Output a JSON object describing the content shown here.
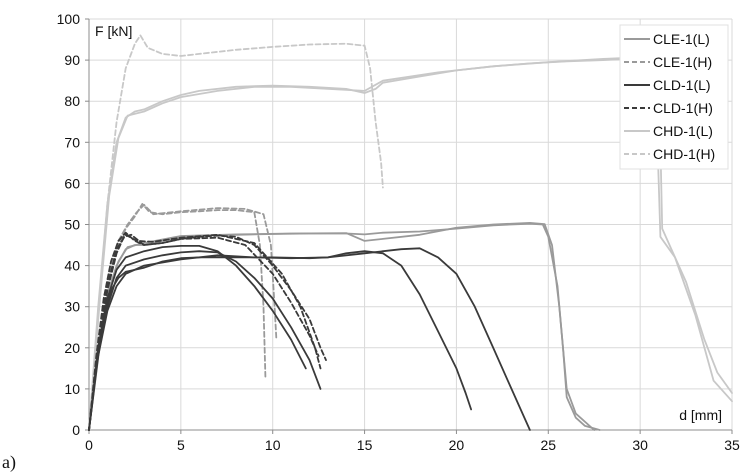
{
  "chart_data": {
    "type": "line",
    "panel_label": "a)",
    "xlabel": "d [mm]",
    "ylabel": "F [kN]",
    "xlim": [
      0,
      35
    ],
    "ylim": [
      0,
      100
    ],
    "xticks": [
      0,
      5,
      10,
      15,
      20,
      25,
      30,
      35
    ],
    "yticks": [
      0,
      10,
      20,
      30,
      40,
      50,
      60,
      70,
      80,
      90,
      100
    ],
    "grid": true,
    "legend_position": "top-right",
    "series": [
      {
        "name": "CLE-1(L)",
        "color": "#9a9a9a",
        "dash": "solid",
        "curves": [
          [
            [
              0,
              0
            ],
            [
              0.5,
              20
            ],
            [
              1,
              33
            ],
            [
              1.5,
              40
            ],
            [
              2,
              44
            ],
            [
              2.5,
              45
            ],
            [
              3,
              45
            ],
            [
              4,
              46
            ],
            [
              5,
              47
            ],
            [
              6,
              47.3
            ],
            [
              8,
              47.5
            ],
            [
              10,
              47.7
            ],
            [
              12,
              47.8
            ],
            [
              14,
              47.8
            ],
            [
              15,
              47.6
            ],
            [
              16,
              48
            ],
            [
              18,
              48.3
            ],
            [
              20,
              49
            ],
            [
              22,
              49.8
            ],
            [
              24,
              50.2
            ],
            [
              24.7,
              50
            ],
            [
              25,
              47
            ],
            [
              25.5,
              35
            ],
            [
              25.8,
              20
            ],
            [
              26,
              8
            ],
            [
              26.5,
              3
            ],
            [
              27,
              1
            ],
            [
              27.8,
              0
            ]
          ],
          [
            [
              0,
              0
            ],
            [
              0.6,
              21
            ],
            [
              1.1,
              34
            ],
            [
              1.6,
              41
            ],
            [
              2.1,
              44.5
            ],
            [
              3,
              45.5
            ],
            [
              5,
              47.2
            ],
            [
              8,
              47.6
            ],
            [
              11,
              47.8
            ],
            [
              14,
              47.9
            ],
            [
              15,
              46
            ],
            [
              16,
              46.5
            ],
            [
              18,
              47.5
            ],
            [
              20,
              49.2
            ],
            [
              22,
              50
            ],
            [
              24,
              50.4
            ],
            [
              24.8,
              50.1
            ],
            [
              25.2,
              45
            ],
            [
              25.6,
              30
            ],
            [
              26,
              10
            ],
            [
              26.5,
              4
            ],
            [
              27.5,
              0
            ]
          ]
        ]
      },
      {
        "name": "CLE-1(H)",
        "color": "#9a9a9a",
        "dash": "dashed",
        "curves": [
          [
            [
              0,
              0
            ],
            [
              0.5,
              22
            ],
            [
              1,
              36
            ],
            [
              1.5,
              44
            ],
            [
              2,
              49
            ],
            [
              2.5,
              52
            ],
            [
              2.9,
              55
            ],
            [
              3.3,
              53
            ],
            [
              4,
              52.5
            ],
            [
              5,
              53
            ],
            [
              6,
              53.2
            ],
            [
              7,
              53.5
            ],
            [
              8,
              53.5
            ],
            [
              9,
              53
            ],
            [
              9.3,
              45
            ],
            [
              9.5,
              30
            ],
            [
              9.6,
              13
            ]
          ],
          [
            [
              0,
              0
            ],
            [
              0.6,
              24
            ],
            [
              1.1,
              38
            ],
            [
              1.6,
              46
            ],
            [
              2.1,
              50
            ],
            [
              2.6,
              53
            ],
            [
              3,
              54.8
            ],
            [
              3.5,
              52.5
            ],
            [
              5,
              53.2
            ],
            [
              7,
              54
            ],
            [
              8.5,
              53.8
            ],
            [
              9.5,
              52.5
            ],
            [
              9.9,
              45
            ],
            [
              10.1,
              30
            ],
            [
              10.2,
              22
            ]
          ]
        ]
      },
      {
        "name": "CLD-1(L)",
        "color": "#3a3a3a",
        "dash": "solid",
        "curves": [
          [
            [
              0,
              0
            ],
            [
              0.4,
              15
            ],
            [
              0.8,
              27
            ],
            [
              1.2,
              34
            ],
            [
              1.6,
              37
            ],
            [
              2,
              38.5
            ],
            [
              3,
              39.5
            ],
            [
              4,
              41
            ],
            [
              5,
              41.8
            ],
            [
              6,
              42
            ],
            [
              8,
              42
            ],
            [
              10,
              42
            ],
            [
              12,
              41.8
            ],
            [
              13,
              42
            ],
            [
              14,
              43
            ],
            [
              15,
              43.5
            ],
            [
              16,
              43
            ],
            [
              17,
              40
            ],
            [
              18,
              33
            ],
            [
              19,
              24
            ],
            [
              20,
              15
            ],
            [
              20.5,
              9
            ],
            [
              20.8,
              5
            ]
          ],
          [
            [
              0,
              0
            ],
            [
              0.5,
              18
            ],
            [
              1,
              29
            ],
            [
              1.5,
              35
            ],
            [
              2,
              38
            ],
            [
              3,
              40
            ],
            [
              5,
              41.5
            ],
            [
              7,
              42.5
            ],
            [
              9,
              42
            ],
            [
              11,
              41.8
            ],
            [
              13,
              42
            ],
            [
              15,
              43
            ],
            [
              17,
              44
            ],
            [
              18,
              44.2
            ],
            [
              19,
              42
            ],
            [
              20,
              38
            ],
            [
              21,
              30
            ],
            [
              22,
              20
            ],
            [
              23,
              10
            ],
            [
              23.7,
              3
            ],
            [
              24,
              0
            ]
          ],
          [
            [
              0,
              0
            ],
            [
              0.5,
              19
            ],
            [
              1,
              30
            ],
            [
              1.5,
              37
            ],
            [
              2,
              40
            ],
            [
              3,
              41.5
            ],
            [
              4,
              42.5
            ],
            [
              5,
              43.2
            ],
            [
              6,
              43.5
            ],
            [
              7,
              43.2
            ],
            [
              8,
              41
            ],
            [
              9,
              37
            ],
            [
              10,
              32
            ],
            [
              11,
              25
            ],
            [
              12,
              17
            ],
            [
              12.6,
              10
            ]
          ],
          [
            [
              0,
              0
            ],
            [
              0.5,
              20
            ],
            [
              1,
              32
            ],
            [
              1.5,
              39
            ],
            [
              2,
              42
            ],
            [
              3,
              43.5
            ],
            [
              4,
              44.5
            ],
            [
              5,
              44.8
            ],
            [
              6,
              44.8
            ],
            [
              7,
              43.5
            ],
            [
              8,
              40
            ],
            [
              9,
              35
            ],
            [
              10,
              29
            ],
            [
              11,
              22
            ],
            [
              11.8,
              15
            ]
          ]
        ]
      },
      {
        "name": "CLD-1(H)",
        "color": "#3a3a3a",
        "dash": "dashed",
        "curves": [
          [
            [
              0,
              0
            ],
            [
              0.4,
              18
            ],
            [
              0.8,
              32
            ],
            [
              1.2,
              41
            ],
            [
              1.6,
              46
            ],
            [
              2,
              48
            ],
            [
              2.5,
              46
            ],
            [
              3,
              45
            ],
            [
              4,
              45.5
            ],
            [
              5,
              46.5
            ],
            [
              6,
              47
            ],
            [
              7,
              47.3
            ],
            [
              8,
              47
            ],
            [
              9,
              45
            ],
            [
              10,
              40
            ],
            [
              11,
              34
            ],
            [
              12,
              27
            ],
            [
              12.6,
              20
            ],
            [
              12.9,
              17
            ]
          ],
          [
            [
              0,
              0
            ],
            [
              0.5,
              20
            ],
            [
              1,
              34
            ],
            [
              1.5,
              43
            ],
            [
              1.9,
              47
            ],
            [
              2.3,
              47.5
            ],
            [
              3,
              45
            ],
            [
              4,
              45.5
            ],
            [
              5,
              46.5
            ],
            [
              7,
              46.8
            ],
            [
              8.5,
              45
            ],
            [
              10,
              38
            ],
            [
              11,
              31
            ],
            [
              12,
              23
            ],
            [
              12.5,
              18
            ]
          ],
          [
            [
              0,
              0
            ],
            [
              0.5,
              21
            ],
            [
              1,
              35
            ],
            [
              1.5,
              44
            ],
            [
              2,
              47.5
            ],
            [
              2.6,
              46
            ],
            [
              3.5,
              45.8
            ],
            [
              5,
              46.8
            ],
            [
              7,
              47.5
            ],
            [
              9,
              45.5
            ],
            [
              10.5,
              38
            ],
            [
              11.5,
              30
            ],
            [
              12.3,
              20
            ],
            [
              12.6,
              15
            ]
          ]
        ]
      },
      {
        "name": "CHD-1(L)",
        "color": "#c8c8c8",
        "dash": "solid",
        "curves": [
          [
            [
              0,
              0
            ],
            [
              0.5,
              30
            ],
            [
              1,
              55
            ],
            [
              1.5,
              70
            ],
            [
              2,
              76
            ],
            [
              2.5,
              77.5
            ],
            [
              3,
              78
            ],
            [
              4,
              80
            ],
            [
              5,
              81.5
            ],
            [
              6,
              82.5
            ],
            [
              8,
              83.5
            ],
            [
              10,
              83.8
            ],
            [
              12,
              83.5
            ],
            [
              14,
              83
            ],
            [
              15,
              82
            ],
            [
              15.6,
              83
            ],
            [
              16,
              84.5
            ],
            [
              18,
              86
            ],
            [
              20,
              87.5
            ],
            [
              22,
              88.5
            ],
            [
              24,
              89.2
            ],
            [
              26,
              89.7
            ],
            [
              28,
              90
            ],
            [
              30,
              90.5
            ],
            [
              31,
              91
            ],
            [
              31.2,
              49
            ],
            [
              31.7,
              44
            ],
            [
              32.5,
              36
            ],
            [
              33.5,
              22
            ],
            [
              34.2,
              14
            ],
            [
              35,
              9
            ]
          ],
          [
            [
              0,
              0
            ],
            [
              0.6,
              32
            ],
            [
              1.1,
              57
            ],
            [
              1.6,
              71
            ],
            [
              2.1,
              76.5
            ],
            [
              3,
              77.5
            ],
            [
              4,
              79.5
            ],
            [
              5,
              81
            ],
            [
              7,
              82.5
            ],
            [
              9,
              83.5
            ],
            [
              11,
              83.5
            ],
            [
              13,
              83
            ],
            [
              15,
              82.5
            ],
            [
              16,
              85
            ],
            [
              19,
              87
            ],
            [
              22,
              88.5
            ],
            [
              25,
              89.5
            ],
            [
              28,
              90.3
            ],
            [
              30.8,
              90.8
            ],
            [
              31.1,
              47
            ],
            [
              31.9,
              42
            ],
            [
              33,
              28
            ],
            [
              34,
              12
            ],
            [
              35,
              7
            ]
          ]
        ]
      },
      {
        "name": "CHD-1(H)",
        "color": "#c8c8c8",
        "dash": "dashed",
        "curves": [
          [
            [
              0,
              0
            ],
            [
              0.5,
              28
            ],
            [
              1,
              55
            ],
            [
              1.5,
              75
            ],
            [
              2,
              88
            ],
            [
              2.5,
              94
            ],
            [
              2.8,
              96
            ],
            [
              3.2,
              93
            ],
            [
              4,
              91.5
            ],
            [
              5,
              91
            ],
            [
              6,
              91.5
            ],
            [
              8,
              92.5
            ],
            [
              10,
              93.2
            ],
            [
              12,
              93.8
            ],
            [
              14,
              94
            ],
            [
              15,
              93.5
            ],
            [
              15.3,
              88
            ],
            [
              15.6,
              75
            ],
            [
              15.9,
              65
            ],
            [
              16,
              59
            ]
          ]
        ]
      }
    ]
  }
}
